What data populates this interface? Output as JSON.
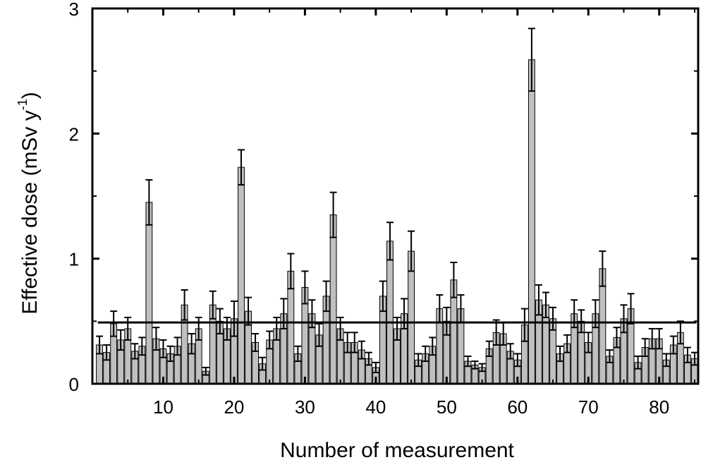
{
  "chart_data": {
    "type": "bar",
    "xlabel": "Number of measurement",
    "ylabel": "Effective dose (mSv y",
    "ylabel_sup": "-1",
    "ylabel_close": ")",
    "xlim": [
      0,
      85.5
    ],
    "ylim": [
      0,
      3
    ],
    "x_ticks": [
      10,
      20,
      30,
      40,
      50,
      60,
      70,
      80
    ],
    "y_ticks": [
      0,
      1,
      2,
      3
    ],
    "x": [
      1,
      2,
      3,
      4,
      5,
      6,
      7,
      8,
      9,
      10,
      11,
      12,
      13,
      14,
      15,
      16,
      17,
      18,
      19,
      20,
      21,
      22,
      23,
      24,
      25,
      26,
      27,
      28,
      29,
      30,
      31,
      32,
      33,
      34,
      35,
      36,
      37,
      38,
      39,
      40,
      41,
      42,
      43,
      44,
      45,
      46,
      47,
      48,
      49,
      50,
      51,
      52,
      53,
      54,
      55,
      56,
      57,
      58,
      59,
      60,
      61,
      62,
      63,
      64,
      65,
      66,
      67,
      68,
      69,
      70,
      71,
      72,
      73,
      74,
      75,
      76,
      77,
      78,
      79,
      80,
      81,
      82,
      83,
      84,
      85
    ],
    "values": [
      0.31,
      0.25,
      0.48,
      0.35,
      0.44,
      0.26,
      0.3,
      1.45,
      0.36,
      0.28,
      0.24,
      0.3,
      0.63,
      0.32,
      0.44,
      0.1,
      0.63,
      0.5,
      0.44,
      0.52,
      1.73,
      0.58,
      0.33,
      0.16,
      0.35,
      0.44,
      0.56,
      0.9,
      0.24,
      0.77,
      0.56,
      0.39,
      0.7,
      1.35,
      0.44,
      0.33,
      0.33,
      0.27,
      0.2,
      0.13,
      0.7,
      1.14,
      0.44,
      0.56,
      1.06,
      0.19,
      0.24,
      0.3,
      0.6,
      0.5,
      0.83,
      0.6,
      0.18,
      0.15,
      0.13,
      0.28,
      0.41,
      0.4,
      0.26,
      0.19,
      0.47,
      2.59,
      0.67,
      0.63,
      0.52,
      0.24,
      0.32,
      0.56,
      0.5,
      0.33,
      0.56,
      0.92,
      0.22,
      0.37,
      0.52,
      0.6,
      0.17,
      0.29,
      0.36,
      0.36,
      0.19,
      0.31,
      0.41,
      0.23,
      0.2
    ],
    "errors": [
      0.07,
      0.06,
      0.1,
      0.08,
      0.09,
      0.06,
      0.07,
      0.18,
      0.09,
      0.07,
      0.06,
      0.07,
      0.12,
      0.08,
      0.09,
      0.03,
      0.11,
      0.1,
      0.09,
      0.14,
      0.14,
      0.11,
      0.07,
      0.05,
      0.07,
      0.09,
      0.12,
      0.14,
      0.06,
      0.13,
      0.11,
      0.09,
      0.12,
      0.18,
      0.09,
      0.08,
      0.08,
      0.07,
      0.05,
      0.04,
      0.12,
      0.15,
      0.09,
      0.12,
      0.16,
      0.05,
      0.06,
      0.07,
      0.11,
      0.11,
      0.14,
      0.11,
      0.04,
      0.03,
      0.03,
      0.06,
      0.1,
      0.09,
      0.06,
      0.05,
      0.13,
      0.25,
      0.12,
      0.1,
      0.09,
      0.06,
      0.07,
      0.11,
      0.09,
      0.08,
      0.11,
      0.14,
      0.05,
      0.08,
      0.11,
      0.12,
      0.05,
      0.07,
      0.08,
      0.08,
      0.05,
      0.07,
      0.09,
      0.06,
      0.05
    ],
    "reference_line": 0.49,
    "bar_color": "#c0c0c0",
    "line_color": "#000000",
    "grid": false
  }
}
